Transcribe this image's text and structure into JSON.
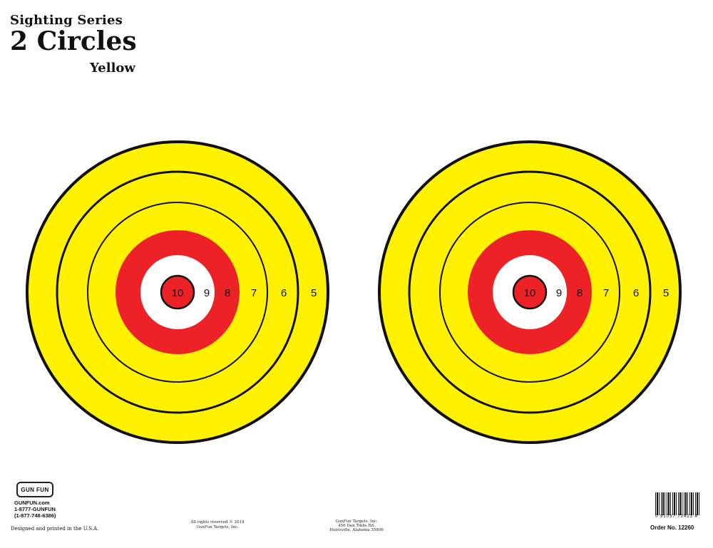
{
  "header": {
    "series": "Sighting Series",
    "title": "2 Circles",
    "color_name": "Yellow"
  },
  "targets": {
    "ring_labels": [
      "10",
      "9",
      "8",
      "7",
      "6",
      "5"
    ],
    "colors": {
      "yellow": "#fff200",
      "red": "#ec2227",
      "white": "#ffffff",
      "line": "#111111"
    }
  },
  "footer": {
    "logo_text": "GUN FUN",
    "website": "GUNFUN.com",
    "phone_letters": "1-8777-GUNFUN",
    "phone_numbers": "(1-877-748-6386)",
    "designed": "Designed and printed in the U.S.A.",
    "rights_line1": "All rights reserved © 2014",
    "rights_line2": "GunFun Targets, Inc.",
    "company": "GunFun Targets, Inc.",
    "street": "456 Dan Tibbs Rd.",
    "city": "Huntsville, Alabama 35806",
    "barcode_digits": "0 91037 72423 4",
    "order_number": "Order No. 12260"
  }
}
